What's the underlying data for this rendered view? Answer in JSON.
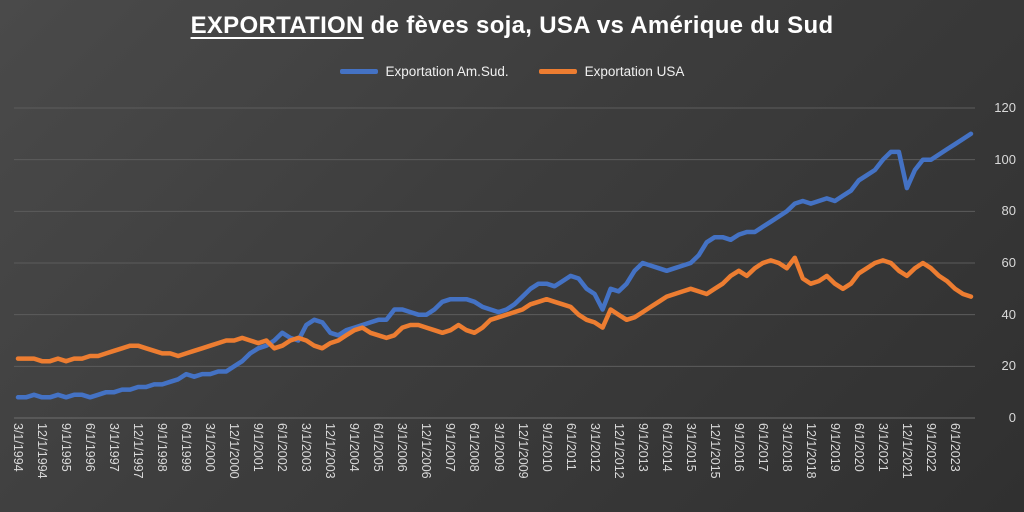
{
  "title": {
    "emphasis": "EXPORTATION",
    "rest": " de fèves soja, USA vs Amérique du Sud"
  },
  "legend": [
    {
      "label": "Exportation Am.Sud.",
      "color": "#4472C4"
    },
    {
      "label": "Exportation USA",
      "color": "#ED7D31"
    }
  ],
  "chart_data": {
    "type": "line",
    "title": "EXPORTATION de fèves soja, USA vs Amérique du Sud",
    "xlabel": "",
    "ylabel": "",
    "ylim": [
      0,
      120
    ],
    "yticks": [
      0,
      20,
      40,
      60,
      80,
      100,
      120
    ],
    "grid": true,
    "legend_position": "top",
    "points_per_label": 3,
    "x_tick_labels": [
      "3/1/1994",
      "12/1/1994",
      "9/1/1995",
      "6/1/1996",
      "3/1/1997",
      "12/1/1997",
      "9/1/1998",
      "6/1/1999",
      "3/1/2000",
      "12/1/2000",
      "9/1/2001",
      "6/1/2002",
      "3/1/2003",
      "12/1/2003",
      "9/1/2004",
      "6/1/2005",
      "3/1/2006",
      "12/1/2006",
      "9/1/2007",
      "6/1/2008",
      "3/1/2009",
      "12/1/2009",
      "9/1/2010",
      "6/1/2011",
      "3/1/2012",
      "12/1/2012",
      "9/1/2013",
      "6/1/2014",
      "3/1/2015",
      "12/1/2015",
      "9/1/2016",
      "6/1/2017",
      "3/1/2018",
      "12/1/2018",
      "9/1/2019",
      "6/1/2020",
      "3/1/2021",
      "12/1/2021",
      "9/1/2022",
      "6/1/2023"
    ],
    "series": [
      {
        "name": "Exportation Am.Sud.",
        "color": "#4472C4",
        "values": [
          8,
          8,
          9,
          8,
          8,
          9,
          8,
          9,
          9,
          8,
          9,
          10,
          10,
          11,
          11,
          12,
          12,
          13,
          13,
          14,
          15,
          17,
          16,
          17,
          17,
          18,
          18,
          20,
          22,
          25,
          27,
          28,
          30,
          33,
          31,
          30,
          36,
          38,
          37,
          33,
          32,
          34,
          35,
          36,
          37,
          38,
          38,
          42,
          42,
          41,
          40,
          40,
          42,
          45,
          46,
          46,
          46,
          45,
          43,
          42,
          41,
          42,
          44,
          47,
          50,
          52,
          52,
          51,
          53,
          55,
          54,
          50,
          48,
          42,
          50,
          49,
          52,
          57,
          60,
          59,
          58,
          57,
          58,
          59,
          60,
          63,
          68,
          70,
          70,
          69,
          71,
          72,
          72,
          74,
          76,
          78,
          80,
          83,
          84,
          83,
          84,
          85,
          84,
          86,
          88,
          92,
          94,
          96,
          100,
          103,
          103,
          89,
          96,
          100,
          100,
          102,
          104,
          106,
          108,
          110
        ]
      },
      {
        "name": "Exportation USA",
        "color": "#ED7D31",
        "values": [
          23,
          23,
          23,
          22,
          22,
          23,
          22,
          23,
          23,
          24,
          24,
          25,
          26,
          27,
          28,
          28,
          27,
          26,
          25,
          25,
          24,
          25,
          26,
          27,
          28,
          29,
          30,
          30,
          31,
          30,
          29,
          30,
          27,
          28,
          30,
          31,
          30,
          28,
          27,
          29,
          30,
          32,
          34,
          35,
          33,
          32,
          31,
          32,
          35,
          36,
          36,
          35,
          34,
          33,
          34,
          36,
          34,
          33,
          35,
          38,
          39,
          40,
          41,
          42,
          44,
          45,
          46,
          45,
          44,
          43,
          40,
          38,
          37,
          35,
          42,
          40,
          38,
          39,
          41,
          43,
          45,
          47,
          48,
          49,
          50,
          49,
          48,
          50,
          52,
          55,
          57,
          55,
          58,
          60,
          61,
          60,
          58,
          62,
          54,
          52,
          53,
          55,
          52,
          50,
          52,
          56,
          58,
          60,
          61,
          60,
          57,
          55,
          58,
          60,
          58,
          55,
          53,
          50,
          48,
          47
        ]
      }
    ]
  }
}
